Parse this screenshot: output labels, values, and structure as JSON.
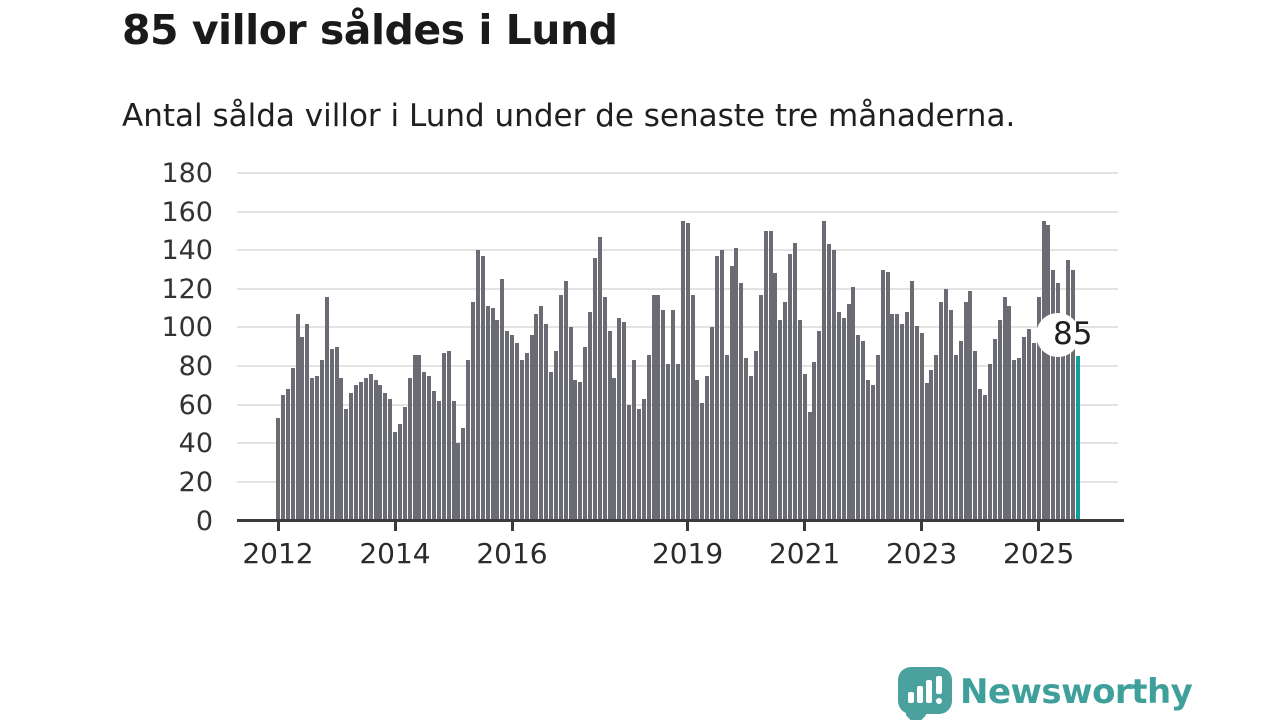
{
  "header": {
    "title": "85 villor såldes i Lund",
    "subtitle": "Antal sålda villor i Lund under de senaste tre månaderna."
  },
  "chart_data": {
    "type": "bar",
    "title": "85 villor såldes i Lund",
    "subtitle": "Antal sålda villor i Lund under de senaste tre månaderna.",
    "xlabel": "",
    "ylabel": "",
    "ylim": [
      0,
      180
    ],
    "grid": true,
    "y_ticks": [
      0,
      20,
      40,
      60,
      80,
      100,
      120,
      140,
      160,
      180
    ],
    "x_tick_labels": [
      "2012",
      "2014",
      "2016",
      "2019",
      "2021",
      "2023",
      "2025"
    ],
    "x_tick_month_index": [
      0,
      24,
      48,
      84,
      108,
      132,
      156
    ],
    "x_start": "2012-01",
    "frequency": "monthly",
    "bar_color": "#6b6b74",
    "highlight_color": "#0f9f9c",
    "highlight_index": 164,
    "highlight_label": "85",
    "values": [
      53,
      65,
      68,
      79,
      107,
      95,
      102,
      74,
      75,
      83,
      116,
      89,
      90,
      74,
      58,
      66,
      70,
      72,
      74,
      76,
      73,
      70,
      66,
      63,
      46,
      50,
      59,
      74,
      86,
      86,
      77,
      75,
      67,
      62,
      87,
      88,
      62,
      40,
      48,
      83,
      113,
      140,
      137,
      111,
      110,
      104,
      125,
      98,
      96,
      92,
      83,
      87,
      96,
      107,
      111,
      102,
      77,
      88,
      117,
      124,
      100,
      73,
      72,
      90,
      108,
      136,
      147,
      116,
      98,
      74,
      105,
      103,
      60,
      83,
      58,
      63,
      86,
      117,
      117,
      109,
      81,
      109,
      81,
      155,
      154,
      117,
      73,
      61,
      75,
      100,
      137,
      140,
      86,
      132,
      141,
      123,
      84,
      75,
      88,
      117,
      150,
      150,
      128,
      104,
      113,
      138,
      144,
      104,
      76,
      56,
      82,
      98,
      155,
      143,
      140,
      108,
      105,
      112,
      121,
      96,
      93,
      73,
      70,
      86,
      130,
      129,
      107,
      107,
      102,
      108,
      124,
      101,
      97,
      71,
      78,
      86,
      113,
      120,
      109,
      86,
      93,
      113,
      119,
      88,
      68,
      65,
      81,
      94,
      104,
      116,
      111,
      83,
      84,
      95,
      99,
      92,
      116,
      155,
      153,
      130,
      123,
      87,
      135,
      130,
      85
    ]
  },
  "annotation": {
    "value_label": "85"
  },
  "branding": {
    "logo_text": "Newsworthy",
    "logo_color": "#3f9f9b",
    "icon": "speech-bubble-bar-chart-icon"
  }
}
